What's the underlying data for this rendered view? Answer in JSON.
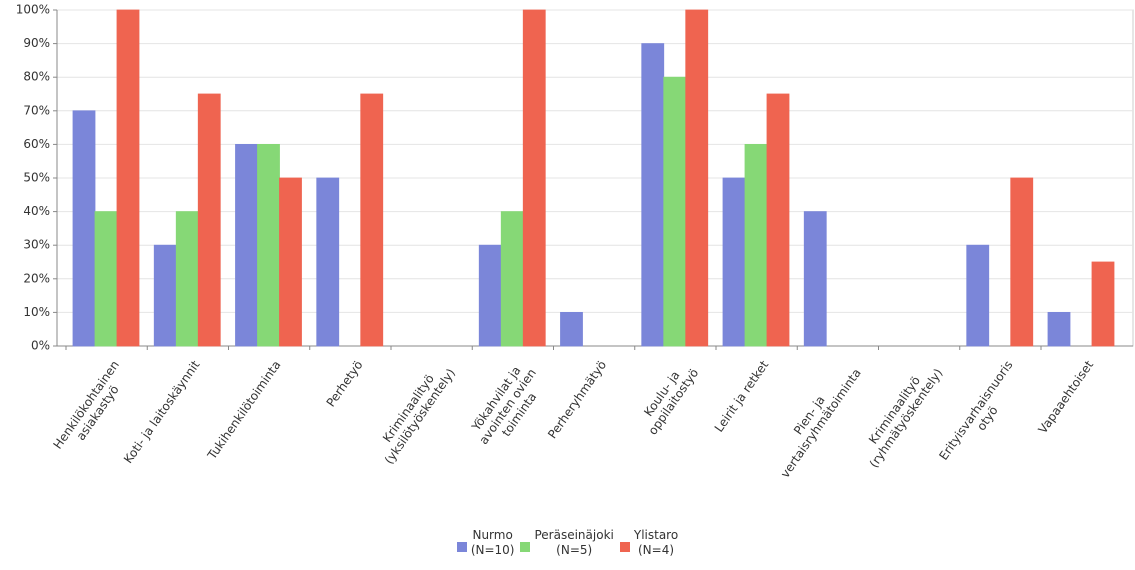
{
  "chart_data": {
    "type": "bar",
    "categories": [
      "Henkilökohtainen\nasiakastyö",
      "Koti- ja laitoskäynnit",
      "Tukihenkilötoiminta",
      "Perhetyö",
      "Kriminaalityö\n(yksilötyöskentely)",
      "Yökahvilat ja\navointen ovien\ntoiminta",
      "Perheryhmätyö",
      "Koulu- ja\noppilaitostyö",
      "Leirit ja retket",
      "Pien- ja\nvertaisryhmätoiminta",
      "Kriminaalityö\n(ryhmätyöskentely)",
      "Erityisvarhaisnuoris\notyö",
      "Vapaaehtoiset"
    ],
    "series": [
      {
        "name": "Nurmo\n(N=10)",
        "color": "#7b86d9",
        "values": [
          70,
          30,
          60,
          50,
          0,
          30,
          10,
          90,
          50,
          40,
          0,
          30,
          10
        ]
      },
      {
        "name": "Peräseinäjoki\n(N=5)",
        "color": "#86d876",
        "values": [
          40,
          40,
          60,
          0,
          0,
          40,
          0,
          80,
          60,
          0,
          0,
          0,
          0
        ]
      },
      {
        "name": "Ylistaro\n(N=4)",
        "color": "#ef6450",
        "values": [
          100,
          75,
          50,
          75,
          0,
          100,
          0,
          100,
          75,
          0,
          0,
          50,
          25
        ]
      }
    ],
    "ylim": [
      0,
      100
    ],
    "yticks": [
      {
        "value": 0,
        "label": "0%"
      },
      {
        "value": 10,
        "label": "10%"
      },
      {
        "value": 20,
        "label": "20%"
      },
      {
        "value": 30,
        "label": "30%"
      },
      {
        "value": 40,
        "label": "40%"
      },
      {
        "value": 50,
        "label": "50%"
      },
      {
        "value": 60,
        "label": "60%"
      },
      {
        "value": 70,
        "label": "70%"
      },
      {
        "value": 80,
        "label": "80%"
      },
      {
        "value": 90,
        "label": "90%"
      },
      {
        "value": 100,
        "label": "100%"
      }
    ],
    "grid": true
  }
}
